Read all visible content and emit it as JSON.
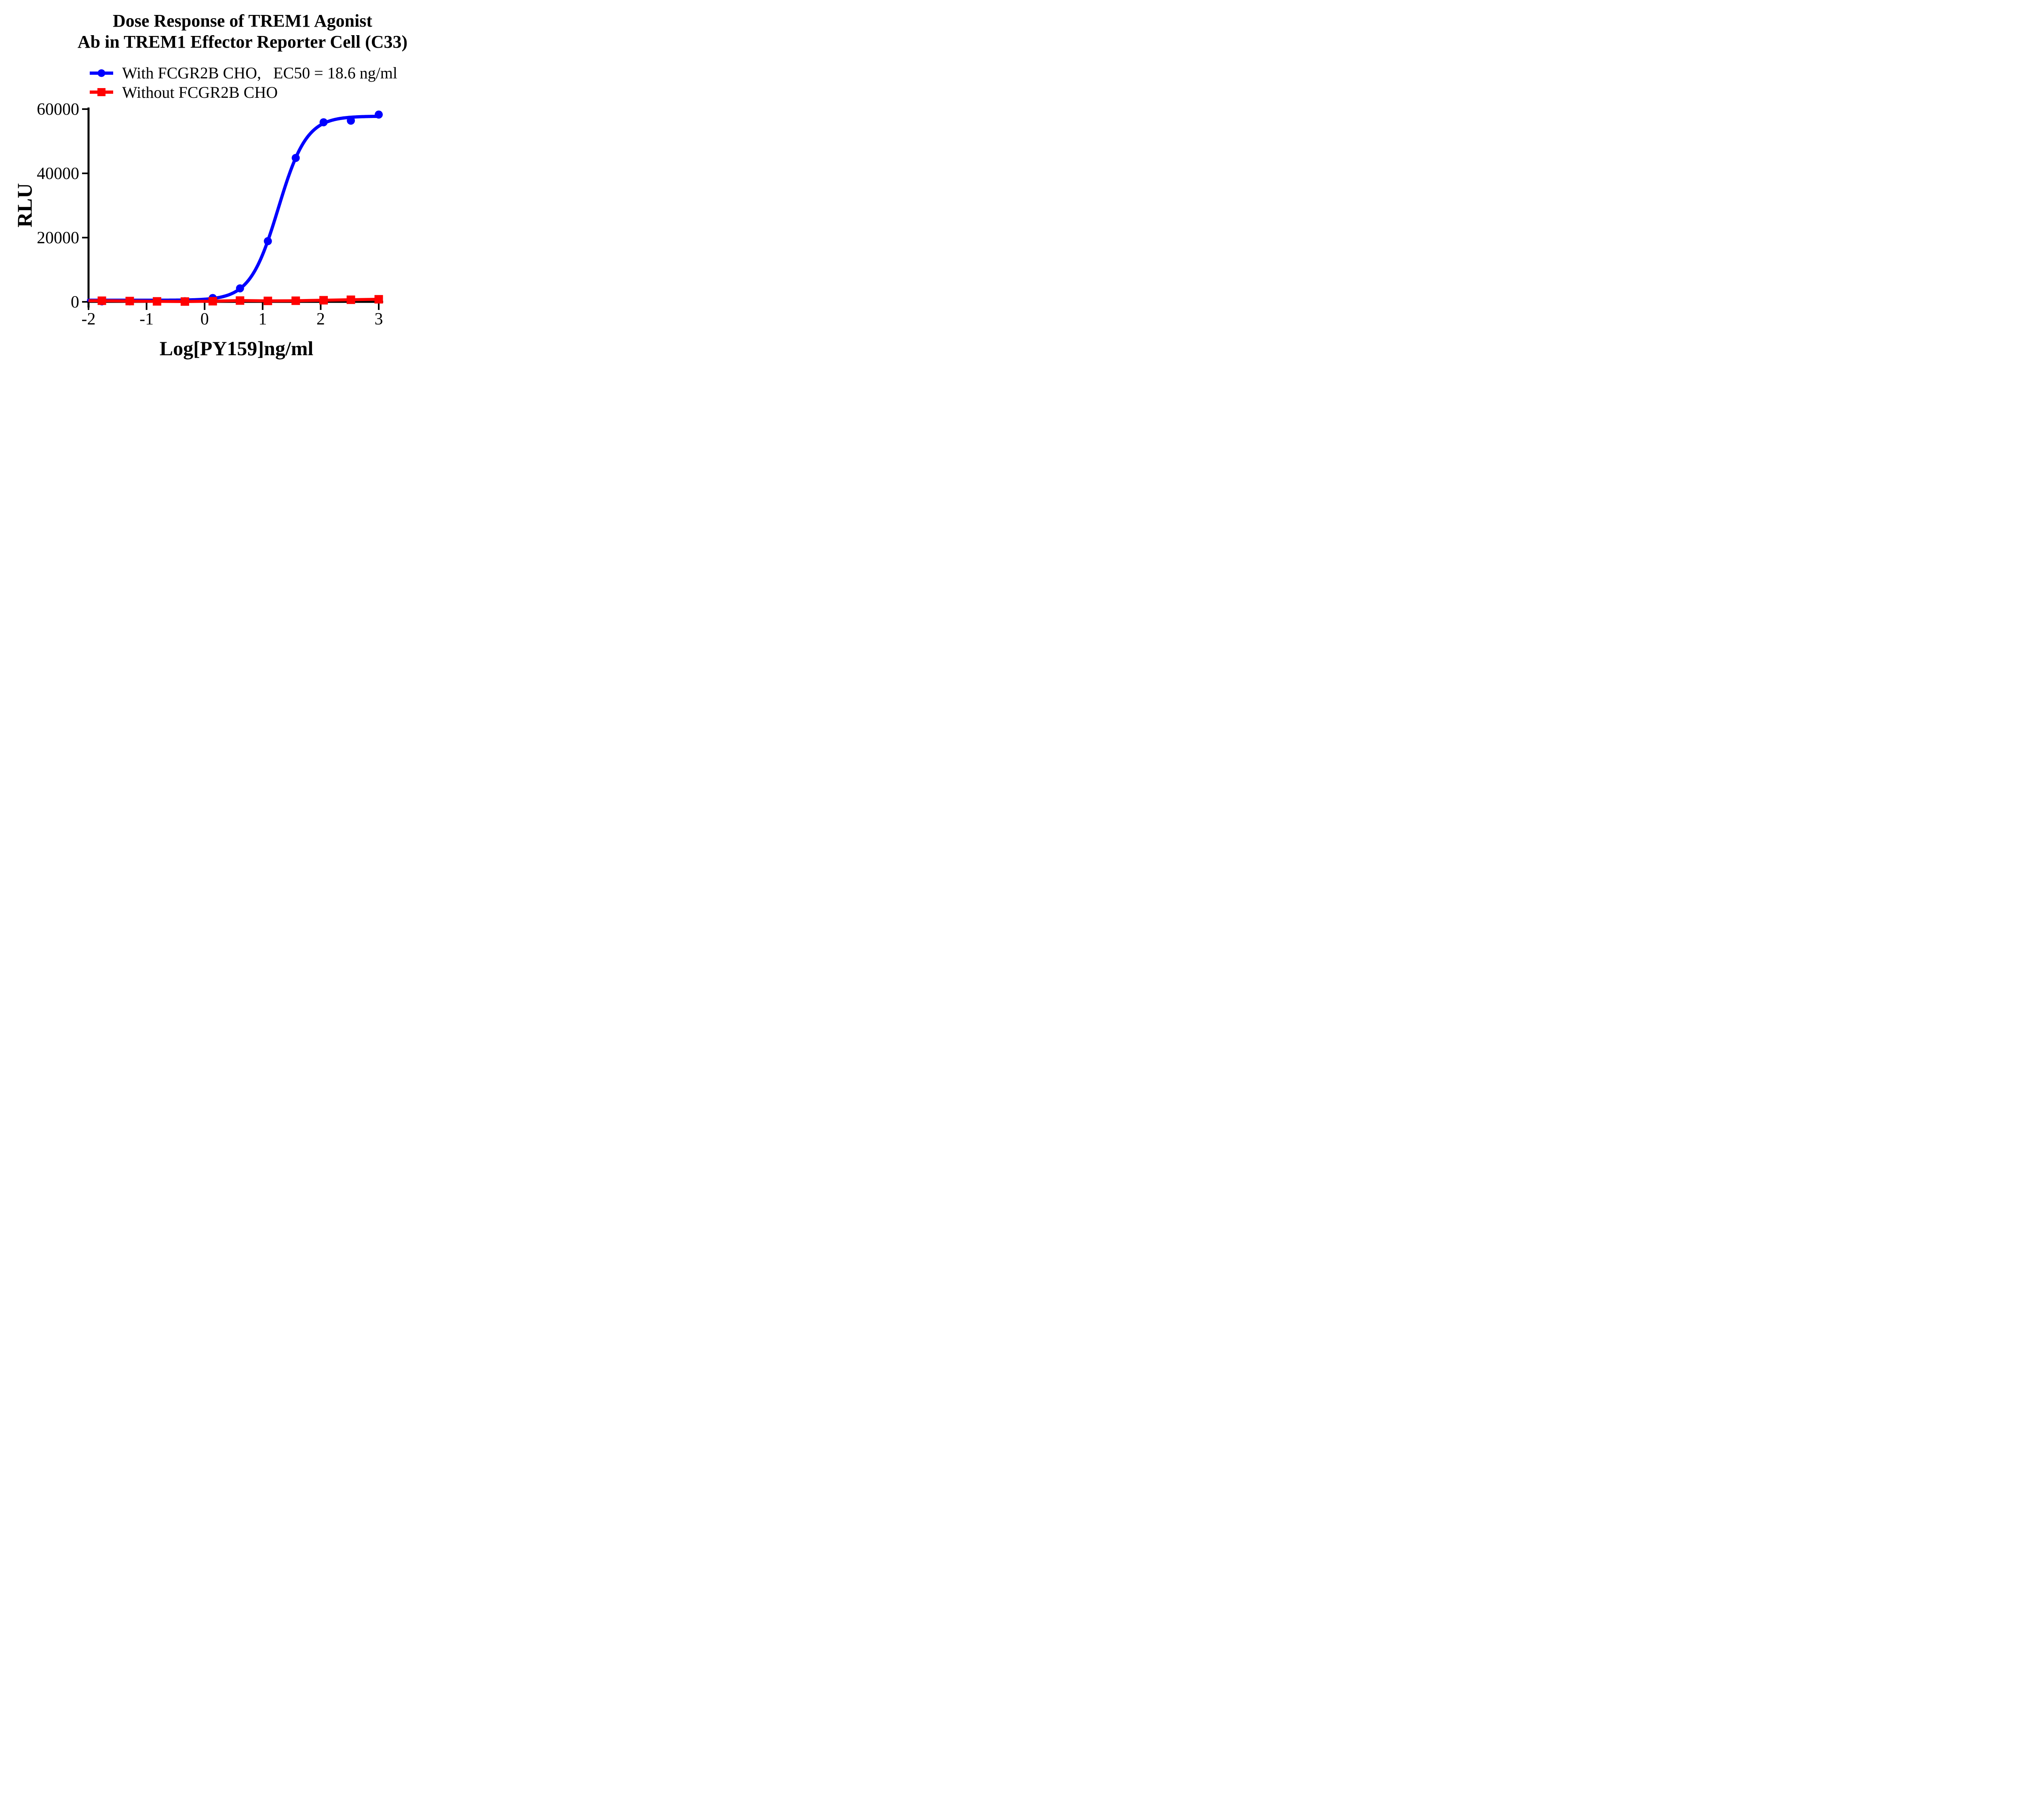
{
  "title": {
    "line1": "Dose Response of TREM1 Agonist",
    "line2": "Ab in TREM1 Effector Reporter Cell (C33)"
  },
  "legend": [
    {
      "label": "With FCGR2B CHO,",
      "ec50": "EC50 = 18.6 ng/ml",
      "color": "#0000ff",
      "marker": "circle"
    },
    {
      "label": "Without FCGR2B CHO",
      "ec50": "",
      "color": "#ff0000",
      "marker": "square"
    }
  ],
  "colors": {
    "axis": "#000000",
    "blue_series": "#0000ff",
    "red_series": "#ff0000"
  },
  "chart_data": {
    "type": "line",
    "title": "Dose Response of TREM1 Agonist Ab in TREM1 Effector Reporter Cell (C33)",
    "xlabel": "Log[PY159]ng/ml",
    "ylabel": "RLU",
    "xlim": [
      -2,
      3
    ],
    "ylim": [
      0,
      60000
    ],
    "x_ticks": [
      "-2",
      "-1",
      "0",
      "1",
      "2",
      "3"
    ],
    "x_tick_values": [
      -2,
      -1,
      0,
      1,
      2,
      3
    ],
    "y_ticks": [
      "0",
      "20000",
      "40000",
      "60000"
    ],
    "y_tick_values": [
      0,
      20000,
      40000,
      60000
    ],
    "grid": false,
    "legend_position": "top-left",
    "x": [
      -1.77,
      -1.29,
      -0.82,
      -0.34,
      0.14,
      0.61,
      1.09,
      1.57,
      2.05,
      2.52,
      3.0
    ],
    "series": [
      {
        "name": "With FCGR2B CHO",
        "color": "#0000ff",
        "marker": "circle",
        "ec50_ng_ml": 18.6,
        "values": [
          150,
          150,
          150,
          200,
          1200,
          4200,
          18900,
          44800,
          55900,
          56400,
          58300
        ],
        "fit": {
          "model": "4PL-sigmoid",
          "bottom": 500,
          "top": 57800,
          "logEC50": 1.27,
          "hill": 1.78
        }
      },
      {
        "name": "Without FCGR2B CHO",
        "color": "#ff0000",
        "marker": "square",
        "values": [
          350,
          250,
          150,
          100,
          200,
          400,
          300,
          350,
          500,
          650,
          800
        ]
      }
    ]
  }
}
